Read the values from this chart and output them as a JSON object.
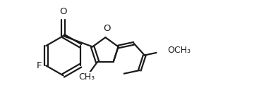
{
  "bg": "#ffffff",
  "lc": "#1a1a1a",
  "lw": 1.6,
  "fs": 9.5,
  "xlim": [
    -0.5,
    3.5
  ],
  "ylim": [
    -0.2,
    1.6
  ],
  "figsize": [
    3.67,
    1.55
  ],
  "dpi": 100,
  "F_label": "F",
  "O_carbonyl_label": "O",
  "O_furan_label": "O",
  "methyl_label": "CH₃",
  "methoxy_label": "OCH₃"
}
